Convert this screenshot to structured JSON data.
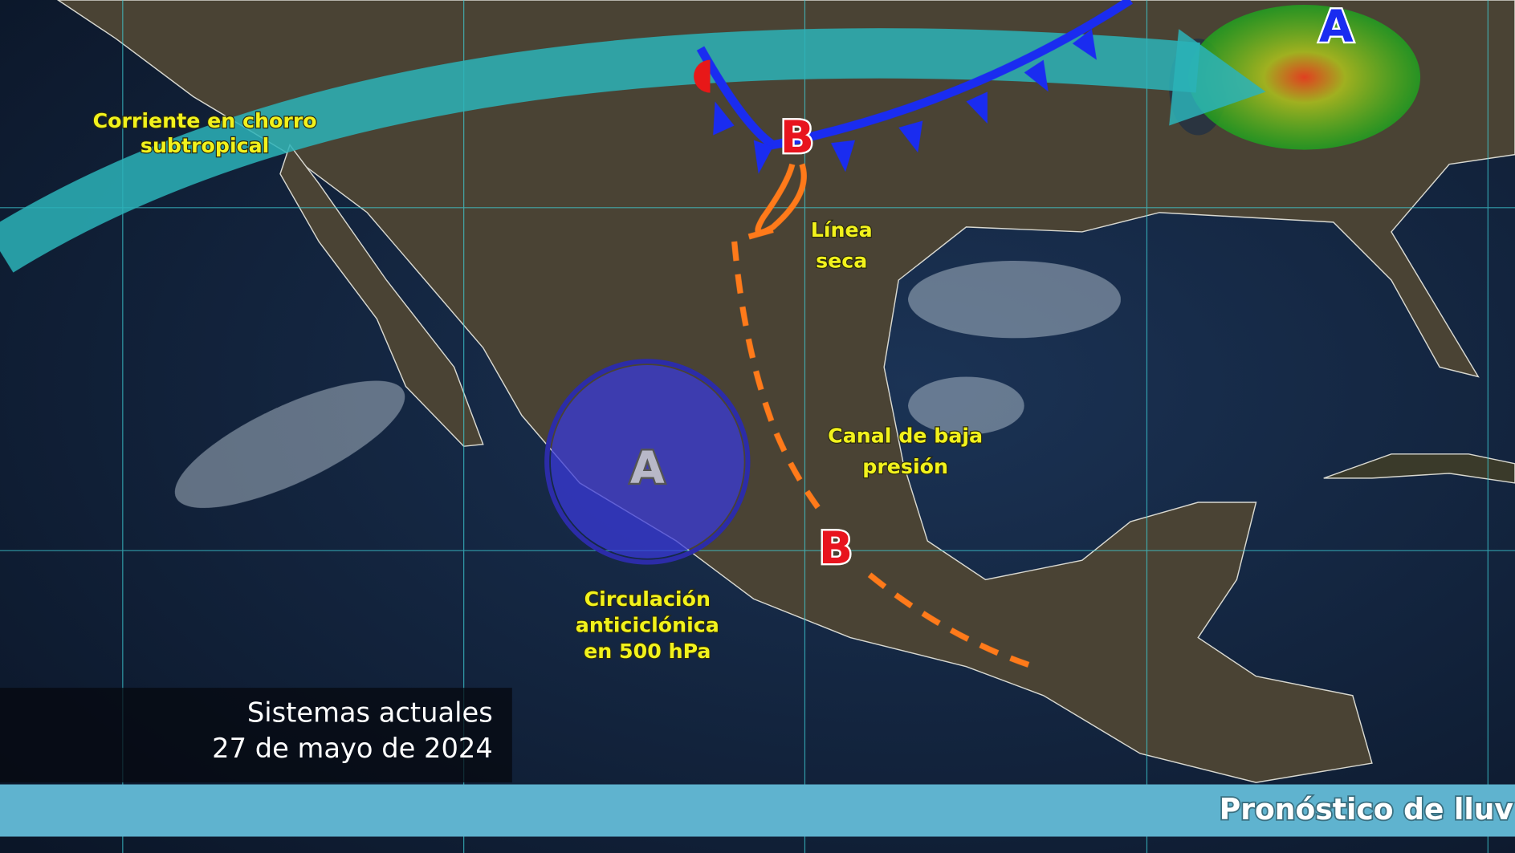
{
  "map": {
    "labels": {
      "jet_stream": [
        "Corriente en chorro",
        "subtropical"
      ],
      "dry_line": [
        "Línea",
        "seca"
      ],
      "trough": [
        "Canal de baja",
        "presión"
      ],
      "anticyclone": [
        "Circulación",
        "anticiclónica",
        "en 500 hPa"
      ]
    },
    "pressure_centers": {
      "low_north": "B",
      "low_south": "B",
      "high_northeast": "A",
      "high_anticyclone": "A"
    },
    "colors": {
      "jet_stream": "#2bb3b8",
      "cold_front": "#1a2cf0",
      "warm_front": "#e81818",
      "dry_line": "#ff7a1a",
      "low": "#e8141e",
      "label": "#f2f21c",
      "anticyclone": "#3a3ad8"
    }
  },
  "caption": {
    "title": "Sistemas actuales",
    "date": "27 de mayo de 2024"
  },
  "ticker": {
    "text": "Pronóstico de lluv"
  }
}
